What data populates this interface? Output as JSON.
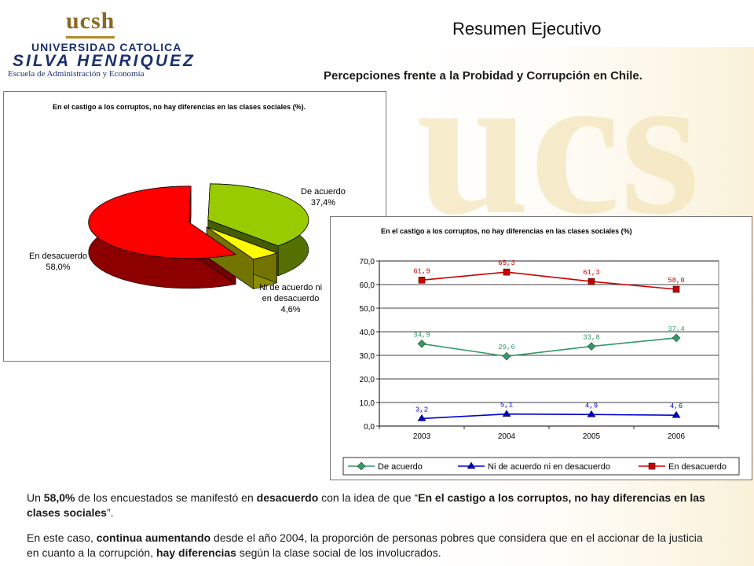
{
  "header": {
    "logo_ucsh": "ucsh",
    "logo_universidad": "UNIVERSIDAD CATOLICA",
    "logo_silva": "SILVA HENRIQUEZ",
    "logo_escuela": "Escuela de Administración y Economía",
    "title": "Resumen Ejecutivo",
    "subtitle": "Percepciones frente a la Probidad y Corrupción en Chile."
  },
  "chart_data": [
    {
      "type": "pie",
      "title": "En el castigo a los corruptos, no hay diferencias en las clases sociales (%).",
      "slices": [
        {
          "label": "De acuerdo",
          "value": 37.4,
          "value_label": "37,4%",
          "color": "#99cc00"
        },
        {
          "label": "Ni de acuerdo ni en desacuerdo",
          "value": 4.6,
          "value_label": "4,6%",
          "color": "#ffff00"
        },
        {
          "label": "En desacuerdo",
          "value": 58.0,
          "value_label": "58,0%",
          "color": "#ff0000"
        }
      ]
    },
    {
      "type": "line",
      "title": "En el castigo a los corruptos, no hay diferencias en las clases sociales (%)",
      "categories": [
        "2003",
        "2004",
        "2005",
        "2006"
      ],
      "ylim": [
        0,
        70
      ],
      "yticks": [
        "0,0",
        "10,0",
        "20,0",
        "30,0",
        "40,0",
        "50,0",
        "60,0",
        "70,0"
      ],
      "grid": true,
      "legend": "bottom",
      "series": [
        {
          "name": "De acuerdo",
          "values": [
            34.9,
            29.6,
            33.8,
            37.4
          ],
          "labels": [
            "34,9",
            "29,6",
            "33,8",
            "37,4"
          ],
          "color": "#339966",
          "marker": "diamond"
        },
        {
          "name": "Ni de acuerdo ni en desacuerdo",
          "values": [
            3.2,
            5.1,
            4.9,
            4.6
          ],
          "labels": [
            "3,2",
            "5,1",
            "4,9",
            "4,6"
          ],
          "color": "#0000cc",
          "marker": "triangle"
        },
        {
          "name": "En desacuerdo",
          "values": [
            61.9,
            65.3,
            61.3,
            58.0
          ],
          "labels": [
            "61,9",
            "65,3",
            "61,3",
            "58,0"
          ],
          "color": "#cc0000",
          "marker": "square"
        }
      ]
    }
  ],
  "text": {
    "p1": [
      {
        "t": "Un ",
        "b": false
      },
      {
        "t": "58,0%",
        "b": true
      },
      {
        "t": " de los encuestados se manifestó en ",
        "b": false
      },
      {
        "t": "desacuerdo",
        "b": true
      },
      {
        "t": " con la idea de que “",
        "b": false
      },
      {
        "t": "En el castigo a los corruptos, no hay diferencias en las clases sociales",
        "b": true
      },
      {
        "t": "”.",
        "b": false
      }
    ],
    "p2": [
      {
        "t": "En este caso, ",
        "b": false
      },
      {
        "t": "continua aumentando",
        "b": true
      },
      {
        "t": " desde el año 2004, la proporción de personas pobres que considera que en el accionar de la justicia en cuanto a la corrupción, ",
        "b": false
      },
      {
        "t": "hay diferencias",
        "b": true
      },
      {
        "t": " según la clase social de los involucrados.",
        "b": false
      }
    ]
  }
}
